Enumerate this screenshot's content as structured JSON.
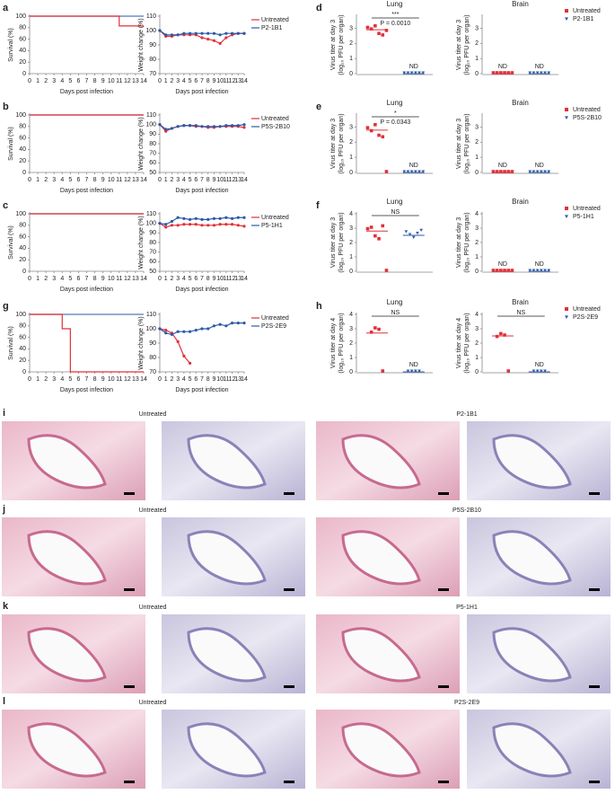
{
  "chart_data": [
    {
      "type": "step",
      "panel": "a",
      "ylabel": "Survival (%)",
      "xlabel": "Days post infection",
      "x": [
        0,
        1,
        2,
        3,
        4,
        5,
        6,
        7,
        8,
        9,
        10,
        11,
        12,
        13,
        14
      ],
      "xlim": [
        0,
        14
      ],
      "xticks": [
        0,
        1,
        2,
        3,
        4,
        5,
        6,
        7,
        8,
        9,
        10,
        11,
        12,
        13,
        14
      ],
      "ylim": [
        0,
        100
      ],
      "yticks": [
        0,
        20,
        40,
        60,
        80,
        100
      ],
      "series": [
        {
          "color": "#5577bb",
          "values": [
            100,
            100,
            100,
            100,
            100,
            100,
            100,
            100,
            100,
            100,
            100,
            100,
            100,
            100,
            100
          ]
        },
        {
          "color": "#e0303a",
          "values": [
            100,
            100,
            100,
            100,
            100,
            100,
            100,
            100,
            100,
            100,
            100,
            83,
            83,
            83,
            83
          ]
        }
      ]
    },
    {
      "type": "line",
      "ylabel": "Weight change (%)",
      "xlabel": "Days post infection",
      "x": [
        0,
        1,
        2,
        3,
        4,
        5,
        6,
        7,
        8,
        9,
        10,
        11,
        12,
        13,
        14
      ],
      "xlim": [
        0,
        14
      ],
      "xticks": [
        0,
        1,
        2,
        3,
        4,
        5,
        6,
        7,
        8,
        9,
        10,
        11,
        12,
        13,
        14
      ],
      "ylim": [
        70,
        110
      ],
      "yticks": [
        70,
        80,
        90,
        100,
        110
      ],
      "legend": true,
      "series": [
        {
          "name": "Untreated",
          "color": "#e0303a",
          "values": [
            100,
            96,
            96,
            97,
            97,
            97,
            97,
            95,
            94,
            93,
            91,
            95,
            97,
            98,
            98
          ]
        },
        {
          "name": "P2-1B1",
          "color": "#2b5aa8",
          "values": [
            100,
            97,
            97,
            97,
            98,
            98,
            98,
            98,
            98,
            98,
            97,
            98,
            98,
            98,
            98
          ]
        }
      ]
    },
    {
      "type": "dot",
      "panel": "d",
      "title": "Lung",
      "ylabel": [
        "Virus titer at day 3",
        "(log₁₀ PFU per organ)"
      ],
      "ylim": [
        0,
        3.8
      ],
      "yticks": [
        0,
        1,
        2,
        3
      ],
      "sig": "***",
      "p": "P = 0.0010",
      "series": [
        {
          "color": "#e0303a",
          "values": [
            3.0,
            2.9,
            3.1,
            2.6,
            2.5,
            2.8
          ],
          "mean": 2.9
        },
        {
          "color": "#2b5aa8",
          "values": [
            0,
            0,
            0,
            0,
            0,
            0
          ],
          "mean": 0,
          "label": "ND"
        }
      ]
    },
    {
      "type": "dot",
      "title": "Brain",
      "ylabel": [
        "Virus titer at day 3",
        "(log₁₀ PFU per organ)"
      ],
      "ylim": [
        0,
        3.8
      ],
      "yticks": [
        0,
        1,
        2,
        3
      ],
      "legend": true,
      "series": [
        {
          "name": "Untreated",
          "color": "#e0303a",
          "values": [
            0,
            0,
            0,
            0,
            0,
            0
          ],
          "mean": 0,
          "label": "ND"
        },
        {
          "name": "P2-1B1",
          "color": "#2b5aa8",
          "values": [
            0,
            0,
            0,
            0,
            0,
            0
          ],
          "mean": 0,
          "label": "ND"
        }
      ]
    },
    {
      "type": "step",
      "panel": "b",
      "ylabel": "Survival (%)",
      "xlabel": "Days post infection",
      "x": [
        0,
        1,
        2,
        3,
        4,
        5,
        6,
        7,
        8,
        9,
        10,
        11,
        12,
        13,
        14
      ],
      "xlim": [
        0,
        14
      ],
      "xticks": [
        0,
        1,
        2,
        3,
        4,
        5,
        6,
        7,
        8,
        9,
        10,
        11,
        12,
        13,
        14
      ],
      "ylim": [
        0,
        100
      ],
      "yticks": [
        0,
        20,
        40,
        60,
        80,
        100
      ],
      "series": [
        {
          "color": "#5577bb",
          "values": [
            100,
            100,
            100,
            100,
            100,
            100,
            100,
            100,
            100,
            100,
            100,
            100,
            100,
            100,
            100
          ]
        },
        {
          "color": "#e0303a",
          "values": [
            100,
            100,
            100,
            100,
            100,
            100,
            100,
            100,
            100,
            100,
            100,
            100,
            100,
            100,
            100
          ]
        }
      ]
    },
    {
      "type": "line",
      "ylabel": "Weight change (%)",
      "xlabel": "Days post infection",
      "x": [
        0,
        1,
        2,
        3,
        4,
        5,
        6,
        7,
        8,
        9,
        10,
        11,
        12,
        13,
        14
      ],
      "xlim": [
        0,
        14
      ],
      "xticks": [
        0,
        1,
        2,
        3,
        4,
        5,
        6,
        7,
        8,
        9,
        10,
        11,
        12,
        13,
        14
      ],
      "ylim": [
        50,
        110
      ],
      "yticks": [
        50,
        60,
        70,
        80,
        90,
        100,
        110
      ],
      "legend": true,
      "series": [
        {
          "name": "Untreated",
          "color": "#e0303a",
          "values": [
            100,
            93,
            96,
            98,
            99,
            99,
            98,
            98,
            97,
            97,
            98,
            98,
            98,
            98,
            97
          ]
        },
        {
          "name": "P5S-2B10",
          "color": "#2b5aa8",
          "values": [
            100,
            95,
            96,
            98,
            99,
            99,
            99,
            98,
            98,
            98,
            98,
            99,
            99,
            99,
            100
          ]
        }
      ]
    },
    {
      "type": "dot",
      "panel": "e",
      "title": "Lung",
      "ylabel": [
        "Virus titer at day 3",
        "(log₁₀ PFU per organ)"
      ],
      "ylim": [
        0,
        3.8
      ],
      "yticks": [
        0,
        1,
        2,
        3
      ],
      "sig": "*",
      "p": "P = 0.0343",
      "series": [
        {
          "color": "#e0303a",
          "values": [
            2.9,
            2.7,
            3.1,
            2.4,
            2.3,
            0
          ],
          "mean": 2.8
        },
        {
          "color": "#2b5aa8",
          "values": [
            0,
            0,
            0,
            0,
            0,
            0
          ],
          "mean": 0,
          "label": "ND"
        }
      ]
    },
    {
      "type": "dot",
      "title": "Brain",
      "ylabel": [
        "Virus titer at day 3",
        "(log₁₀ PFU per organ)"
      ],
      "ylim": [
        0,
        3.8
      ],
      "yticks": [
        0,
        1,
        2,
        3
      ],
      "legend": true,
      "series": [
        {
          "name": "Untreated",
          "color": "#e0303a",
          "values": [
            0,
            0,
            0,
            0,
            0,
            0
          ],
          "mean": 0,
          "label": "ND"
        },
        {
          "name": "P5S-2B10",
          "color": "#2b5aa8",
          "values": [
            0,
            0,
            0,
            0,
            0,
            0
          ],
          "mean": 0,
          "label": "ND"
        }
      ]
    },
    {
      "type": "step",
      "panel": "c",
      "ylabel": "Survival (%)",
      "xlabel": "Days post infection",
      "x": [
        0,
        1,
        2,
        3,
        4,
        5,
        6,
        7,
        8,
        9,
        10,
        11,
        12,
        13,
        14
      ],
      "xlim": [
        0,
        14
      ],
      "xticks": [
        0,
        1,
        2,
        3,
        4,
        5,
        6,
        7,
        8,
        9,
        10,
        11,
        12,
        13,
        14
      ],
      "ylim": [
        0,
        100
      ],
      "yticks": [
        0,
        20,
        40,
        60,
        80,
        100
      ],
      "series": [
        {
          "color": "#5577bb",
          "values": [
            100,
            100,
            100,
            100,
            100,
            100,
            100,
            100,
            100,
            100,
            100,
            100,
            100,
            100,
            100
          ]
        },
        {
          "color": "#e0303a",
          "values": [
            100,
            100,
            100,
            100,
            100,
            100,
            100,
            100,
            100,
            100,
            100,
            100,
            100,
            100,
            100
          ]
        }
      ]
    },
    {
      "type": "line",
      "ylabel": "Weight change (%)",
      "xlabel": "Days post infection",
      "x": [
        0,
        1,
        2,
        3,
        4,
        5,
        6,
        7,
        8,
        9,
        10,
        11,
        12,
        13,
        14
      ],
      "xlim": [
        0,
        14
      ],
      "xticks": [
        0,
        1,
        2,
        3,
        4,
        5,
        6,
        7,
        8,
        9,
        10,
        11,
        12,
        13,
        14
      ],
      "ylim": [
        50,
        110
      ],
      "yticks": [
        50,
        60,
        70,
        80,
        90,
        100,
        110
      ],
      "legend": true,
      "series": [
        {
          "name": "Untreated",
          "color": "#e0303a",
          "values": [
            100,
            96,
            98,
            98,
            99,
            99,
            99,
            98,
            98,
            98,
            99,
            99,
            99,
            98,
            97
          ]
        },
        {
          "name": "P5-1H1",
          "color": "#2b5aa8",
          "values": [
            100,
            99,
            102,
            106,
            105,
            104,
            105,
            104,
            104,
            105,
            105,
            106,
            105,
            106,
            106
          ]
        }
      ]
    },
    {
      "type": "dot",
      "panel": "f",
      "title": "Lung",
      "ylabel": [
        "Virus titer at day 3",
        "(log₁₀ PFU per organ)"
      ],
      "ylim": [
        0,
        4
      ],
      "yticks": [
        0,
        1,
        2,
        3,
        4
      ],
      "sig": "NS",
      "series": [
        {
          "color": "#e0303a",
          "values": [
            2.9,
            3.0,
            2.4,
            2.2,
            3.1,
            0
          ],
          "mean": 2.8
        },
        {
          "color": "#2b5aa8",
          "values": [
            2.7,
            2.5,
            2.3,
            2.6,
            2.8
          ],
          "mean": 2.5
        }
      ]
    },
    {
      "type": "dot",
      "title": "Brain",
      "ylabel": [
        "Virus titer at day 3",
        "(log₁₀ PFU per organ)"
      ],
      "ylim": [
        0,
        4
      ],
      "yticks": [
        0,
        1,
        2,
        3,
        4
      ],
      "legend": true,
      "series": [
        {
          "name": "Untreated",
          "color": "#e0303a",
          "values": [
            0,
            0,
            0,
            0,
            0,
            0
          ],
          "mean": 0,
          "label": "ND"
        },
        {
          "name": "P5-1H1",
          "color": "#2b5aa8",
          "values": [
            0,
            0,
            0,
            0,
            0,
            0
          ],
          "mean": 0,
          "label": "ND"
        }
      ]
    },
    {
      "type": "step",
      "panel": "g",
      "ylabel": "Survival (%)",
      "xlabel": "Days post infection",
      "x": [
        0,
        1,
        2,
        3,
        4,
        5,
        6,
        7,
        8,
        9,
        10,
        11,
        12,
        13,
        14
      ],
      "xlim": [
        0,
        14
      ],
      "xticks": [
        0,
        1,
        2,
        3,
        4,
        5,
        6,
        7,
        8,
        9,
        10,
        11,
        12,
        13,
        14
      ],
      "ylim": [
        0,
        100
      ],
      "yticks": [
        0,
        20,
        40,
        60,
        80,
        100
      ],
      "series": [
        {
          "color": "#5577bb",
          "values": [
            100,
            100,
            100,
            100,
            100,
            100,
            100,
            100,
            100,
            100,
            100,
            100,
            100,
            100,
            100
          ]
        },
        {
          "color": "#e0303a",
          "values": [
            100,
            100,
            100,
            100,
            75,
            0,
            0,
            0,
            0,
            0,
            0,
            0,
            0,
            0,
            0
          ]
        }
      ]
    },
    {
      "type": "line",
      "ylabel": "Weight change (%)",
      "xlabel": "Days post infection",
      "x": [
        0,
        1,
        2,
        3,
        4,
        5,
        6,
        7,
        8,
        9,
        10,
        11,
        12,
        13,
        14
      ],
      "xlim": [
        0,
        14
      ],
      "xticks": [
        0,
        1,
        2,
        3,
        4,
        5,
        6,
        7,
        8,
        9,
        10,
        11,
        12,
        13,
        14
      ],
      "ylim": [
        70,
        110
      ],
      "yticks": [
        70,
        80,
        90,
        100,
        110
      ],
      "legend": true,
      "series": [
        {
          "name": "Untreated",
          "color": "#e0303a",
          "values": [
            100,
            99,
            97,
            91,
            81,
            76,
            null,
            null,
            null,
            null,
            null,
            null,
            null,
            null,
            null
          ]
        },
        {
          "name": "P2S-2E9",
          "color": "#2b5aa8",
          "values": [
            100,
            97,
            96,
            98,
            98,
            98,
            99,
            100,
            100,
            102,
            103,
            102,
            104,
            104,
            104
          ]
        }
      ]
    },
    {
      "type": "dot",
      "panel": "h",
      "title": "Lung",
      "ylabel": [
        "Virus titer at day 4",
        "(log₁₀ PFU per organ)"
      ],
      "ylim": [
        0,
        4
      ],
      "yticks": [
        0,
        1,
        2,
        3,
        4
      ],
      "sig": "NS",
      "series": [
        {
          "color": "#e0303a",
          "values": [
            2.7,
            3.0,
            2.9,
            0
          ],
          "mean": 2.7
        },
        {
          "color": "#2b5aa8",
          "values": [
            0,
            0,
            0,
            0
          ],
          "mean": 0,
          "label": "ND"
        }
      ]
    },
    {
      "type": "dot",
      "title": "Brain",
      "ylabel": [
        "Virus titer at day 4",
        "(log₁₀ PFU per organ)"
      ],
      "ylim": [
        0,
        4
      ],
      "yticks": [
        0,
        1,
        2,
        3,
        4
      ],
      "sig": "NS",
      "legend": true,
      "series": [
        {
          "name": "Untreated",
          "color": "#e0303a",
          "values": [
            2.4,
            2.6,
            2.5,
            0
          ],
          "mean": 2.5
        },
        {
          "name": "P2S-2E9",
          "color": "#2b5aa8",
          "values": [
            0,
            0,
            0,
            0
          ],
          "mean": 0,
          "label": "ND"
        }
      ]
    }
  ],
  "histology": [
    {
      "panel": "i",
      "left_label": "Untreated",
      "right_label": "P2-1B1"
    },
    {
      "panel": "j",
      "left_label": "Untreated",
      "right_label": "P5S-2B10"
    },
    {
      "panel": "k",
      "left_label": "Untreated",
      "right_label": "P5-1H1"
    },
    {
      "panel": "l",
      "left_label": "Untreated",
      "right_label": "P2S-2E9"
    }
  ]
}
